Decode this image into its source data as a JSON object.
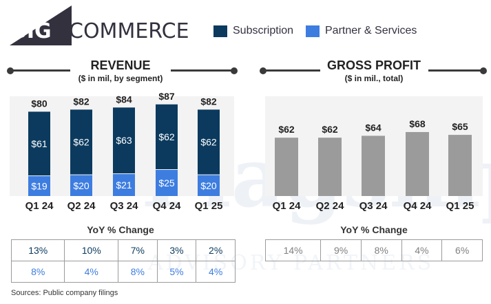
{
  "brand": {
    "logo_big": "BIG",
    "logo_commerce": "COMMERCE"
  },
  "legend": [
    {
      "label": "Subscription",
      "color": "#0b3a5e"
    },
    {
      "label": "Partner & Services",
      "color": "#3d7de0"
    }
  ],
  "watermark": {
    "main": "Flagship",
    "sub": "ADVISORY PARTNERS"
  },
  "revenue": {
    "title": "REVENUE",
    "subtitle": "($ in mil, by segment)"
  },
  "gross_profit": {
    "title": "GROSS PROFIT",
    "subtitle": "($ in mil., total)"
  },
  "yoy_revenue": {
    "title": "YoY % Change",
    "row1": [
      "13%",
      "10%",
      "7%",
      "3%",
      "2%"
    ],
    "row2": [
      "8%",
      "4%",
      "8%",
      "5%",
      "4%"
    ],
    "row1_color": "#0b3a5e",
    "row2_color": "#3d7de0"
  },
  "yoy_gross": {
    "title": "YoY % Change",
    "row1": [
      "14%",
      "9%",
      "8%",
      "4%",
      "6%"
    ],
    "color": "#808080"
  },
  "sources": "Sources: Public company filings",
  "chart_data": [
    {
      "type": "bar",
      "title": "REVENUE",
      "subtitle": "($ in mil, by segment)",
      "stacked": true,
      "categories": [
        "Q1 24",
        "Q2 24",
        "Q3 24",
        "Q4 24",
        "Q1 25"
      ],
      "series": [
        {
          "name": "Subscription",
          "values": [
            61,
            62,
            63,
            62,
            62
          ],
          "labels": [
            "$61",
            "$62",
            "$63",
            "$62",
            "$62"
          ],
          "color": "#0b3a5e"
        },
        {
          "name": "Partner & Services",
          "values": [
            19,
            20,
            21,
            25,
            20
          ],
          "labels": [
            "$19",
            "$20",
            "$21",
            "$25",
            "$20"
          ],
          "color": "#3d7de0"
        }
      ],
      "totals": [
        80,
        82,
        84,
        87,
        82
      ],
      "total_labels": [
        "$80",
        "$82",
        "$84",
        "$87",
        "$82"
      ],
      "ylim": [
        0,
        100
      ],
      "grid": false,
      "legend": "top"
    },
    {
      "type": "bar",
      "title": "GROSS PROFIT",
      "subtitle": "($ in mil., total)",
      "categories": [
        "Q1 24",
        "Q2 24",
        "Q3 24",
        "Q4 24",
        "Q1 25"
      ],
      "values": [
        62,
        62,
        64,
        68,
        65
      ],
      "value_labels": [
        "$62",
        "$62",
        "$64",
        "$68",
        "$65"
      ],
      "color": "#9b9b9b",
      "ylim": [
        0,
        100
      ],
      "grid": false
    }
  ]
}
